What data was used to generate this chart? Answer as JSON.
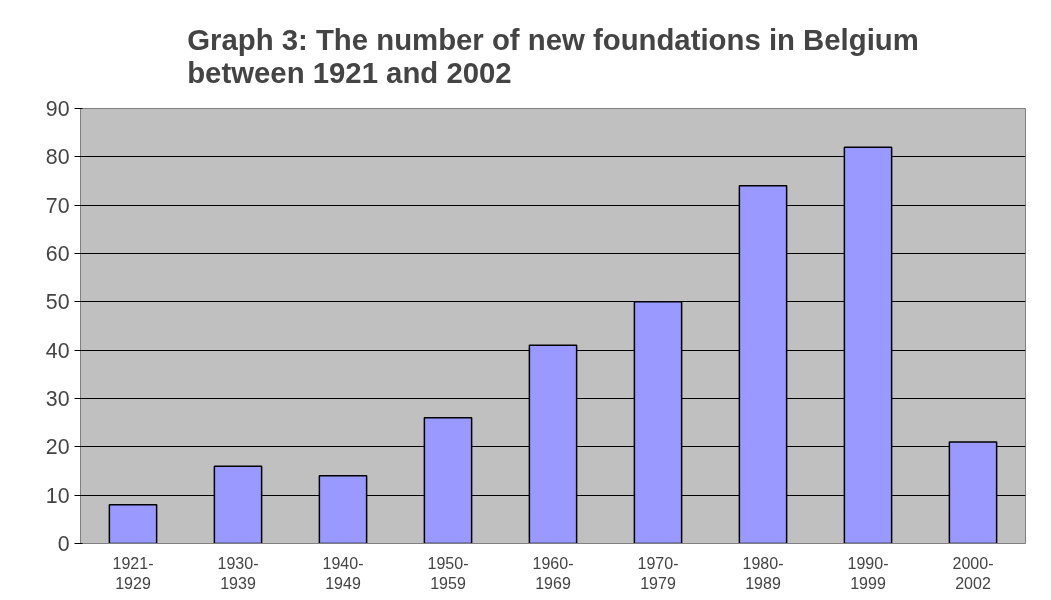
{
  "chart_data": {
    "type": "bar",
    "title": "Graph 3: The number of new foundations in Belgium\nbetween 1921 and 2002",
    "categories": [
      "1921-\n1929",
      "1930-\n1939",
      "1940-\n1949",
      "1950-\n1959",
      "1960-\n1969",
      "1970-\n1979",
      "1980-\n1989",
      "1990-\n1999",
      "2000-\n2002"
    ],
    "values": [
      8,
      16,
      14,
      26,
      41,
      50,
      74,
      82,
      21
    ],
    "color": "#9999ff",
    "ylim": [
      0,
      90
    ],
    "yticks": [
      0,
      10,
      20,
      30,
      40,
      50,
      60,
      70,
      80,
      90
    ],
    "grid": "y"
  }
}
